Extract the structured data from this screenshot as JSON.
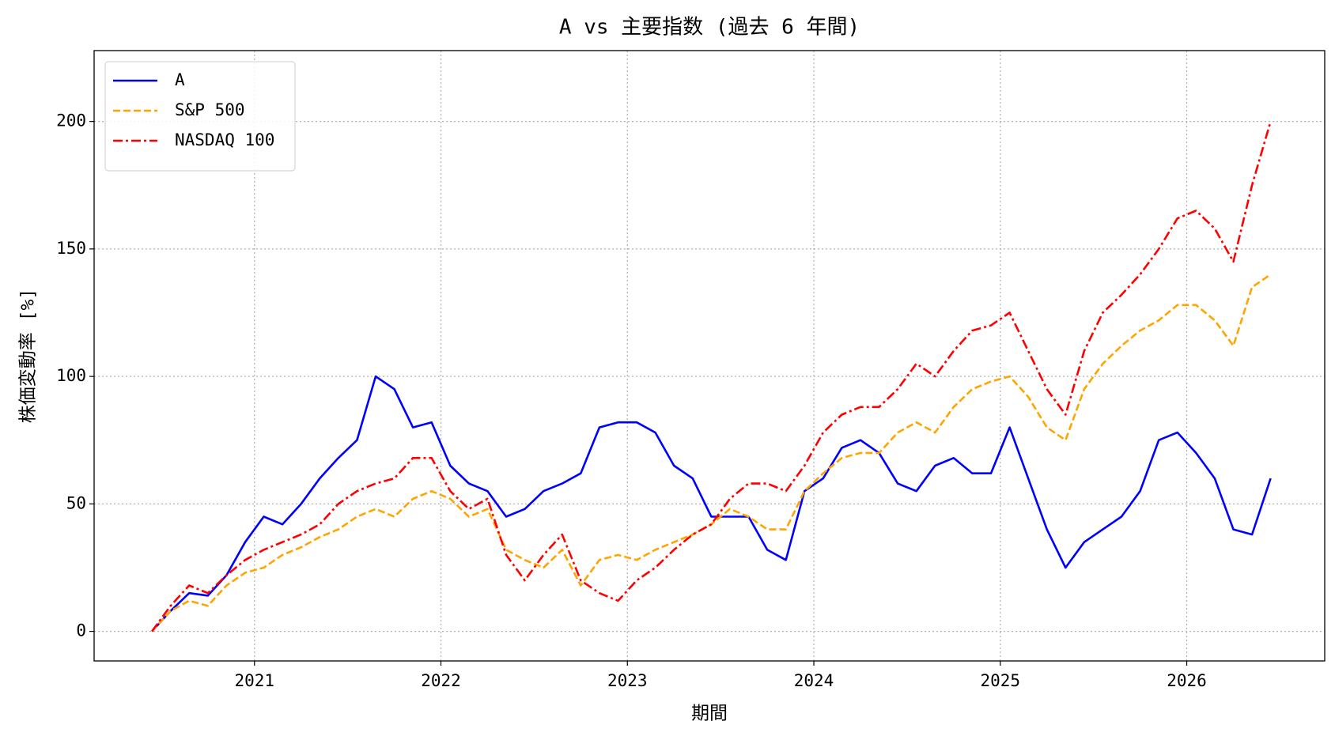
{
  "chart_data": {
    "type": "line",
    "title": "A vs 主要指数 (過去 6 年間)",
    "x_label": "期間",
    "y_label": "株価変動率 [%]",
    "x": [
      2020.45,
      2020.55,
      2020.65,
      2020.75,
      2020.85,
      2020.95,
      2021.05,
      2021.15,
      2021.25,
      2021.35,
      2021.45,
      2021.55,
      2021.65,
      2021.75,
      2021.85,
      2021.95,
      2022.05,
      2022.15,
      2022.25,
      2022.35,
      2022.45,
      2022.55,
      2022.65,
      2022.75,
      2022.85,
      2022.95,
      2023.05,
      2023.15,
      2023.25,
      2023.35,
      2023.45,
      2023.55,
      2023.65,
      2023.75,
      2023.85,
      2023.95,
      2024.05,
      2024.15,
      2024.25,
      2024.35,
      2024.45,
      2024.55,
      2024.65,
      2024.75,
      2024.85,
      2024.95,
      2025.05,
      2025.15,
      2025.25,
      2025.35,
      2025.45,
      2025.55,
      2025.65,
      2025.75,
      2025.85,
      2025.95,
      2026.05,
      2026.15,
      2026.25,
      2026.35,
      2026.45
    ],
    "series": [
      {
        "name": "A",
        "color": "#0000ff",
        "linestyle": "solid",
        "values": [
          0,
          8,
          15,
          14,
          22,
          35,
          45,
          42,
          50,
          60,
          68,
          75,
          100,
          95,
          80,
          82,
          65,
          58,
          55,
          45,
          48,
          55,
          58,
          62,
          80,
          82,
          82,
          78,
          65,
          60,
          45,
          45,
          45,
          32,
          28,
          55,
          60,
          72,
          75,
          70,
          58,
          55,
          65,
          68,
          62,
          62,
          80,
          60,
          40,
          25,
          35,
          40,
          45,
          55,
          75,
          78,
          70,
          60,
          40,
          38,
          60
        ]
      },
      {
        "name": "S&P 500",
        "color": "#ffa500",
        "linestyle": "dashed",
        "values": [
          0,
          8,
          12,
          10,
          18,
          23,
          25,
          30,
          33,
          37,
          40,
          45,
          48,
          45,
          52,
          55,
          52,
          45,
          48,
          32,
          28,
          25,
          32,
          18,
          28,
          30,
          28,
          32,
          35,
          38,
          42,
          48,
          45,
          40,
          40,
          55,
          62,
          68,
          70,
          70,
          78,
          82,
          78,
          88,
          95,
          98,
          100,
          92,
          80,
          75,
          95,
          105,
          112,
          118,
          122,
          128,
          128,
          122,
          112,
          135,
          140
        ]
      },
      {
        "name": "NASDAQ 100",
        "color": "#ff0000",
        "linestyle": "dashdot",
        "values": [
          0,
          10,
          18,
          15,
          22,
          28,
          32,
          35,
          38,
          42,
          50,
          55,
          58,
          60,
          68,
          68,
          55,
          48,
          52,
          30,
          20,
          30,
          38,
          20,
          15,
          12,
          20,
          25,
          32,
          38,
          42,
          52,
          58,
          58,
          55,
          65,
          78,
          85,
          88,
          88,
          95,
          105,
          100,
          110,
          118,
          120,
          125,
          110,
          95,
          85,
          110,
          125,
          132,
          140,
          150,
          162,
          165,
          158,
          145,
          175,
          200
        ]
      }
    ],
    "xlim": [
      2020.14,
      2026.74
    ],
    "xticks": [
      2021,
      2022,
      2023,
      2024,
      2025,
      2026
    ],
    "ylim": [
      -11.6,
      227.8
    ],
    "yticks": [
      0,
      50,
      100,
      150,
      200
    ],
    "grid": true,
    "legend": "upper left"
  }
}
